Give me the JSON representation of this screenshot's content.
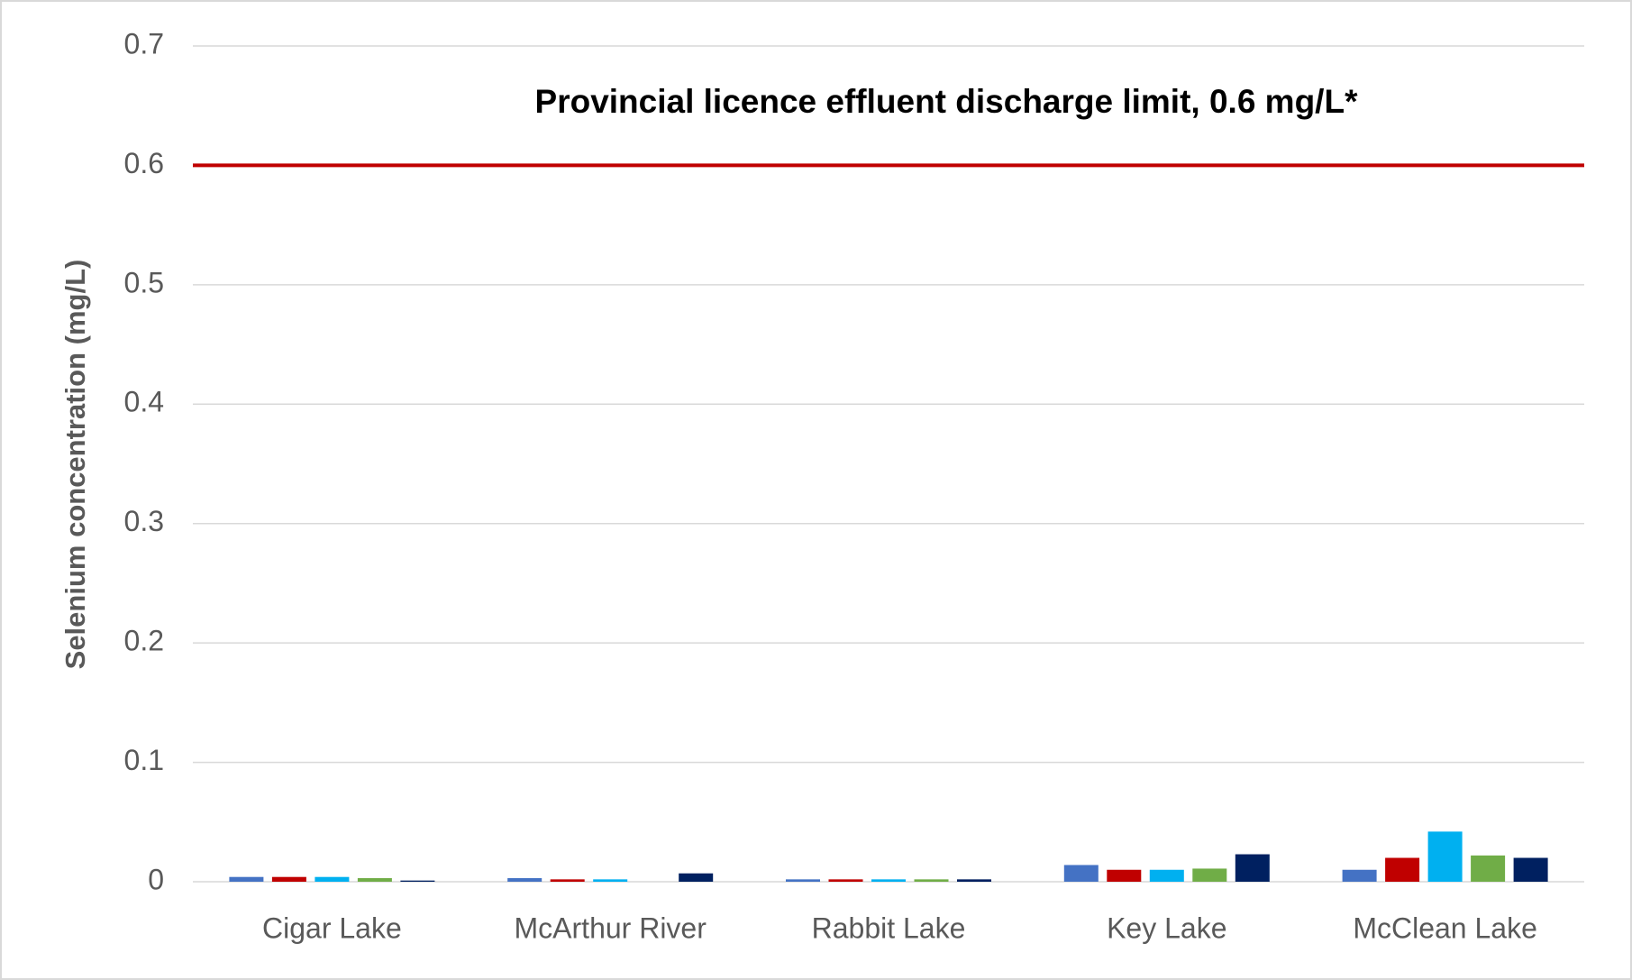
{
  "chart_data": {
    "type": "bar",
    "y_label": "Selenium concentration (mg/L)",
    "annotation": "Provincial licence effluent discharge limit, 0.6 mg/L*",
    "reference_line": {
      "value": 0.6,
      "color": "#c00000"
    },
    "categories": [
      "Cigar Lake",
      "McArthur River",
      "Rabbit Lake",
      "Key Lake",
      "McClean Lake"
    ],
    "series": [
      {
        "color": "#4472c4",
        "values": [
          0.004,
          0.003,
          0.002,
          0.014,
          0.01
        ]
      },
      {
        "color": "#c00000",
        "values": [
          0.004,
          0.002,
          0.002,
          0.01,
          0.02
        ]
      },
      {
        "color": "#00b0f0",
        "values": [
          0.004,
          0.002,
          0.002,
          0.01,
          0.042
        ]
      },
      {
        "color": "#70ad47",
        "values": [
          0.003,
          null,
          0.002,
          0.011,
          0.022
        ]
      },
      {
        "color": "#002060",
        "values": [
          0.001,
          0.007,
          0.002,
          0.023,
          0.02
        ]
      }
    ],
    "ylim": [
      0,
      0.7
    ],
    "yticks": [
      0,
      0.1,
      0.2,
      0.3,
      0.4,
      0.5,
      0.6,
      0.7
    ],
    "grid": true
  }
}
